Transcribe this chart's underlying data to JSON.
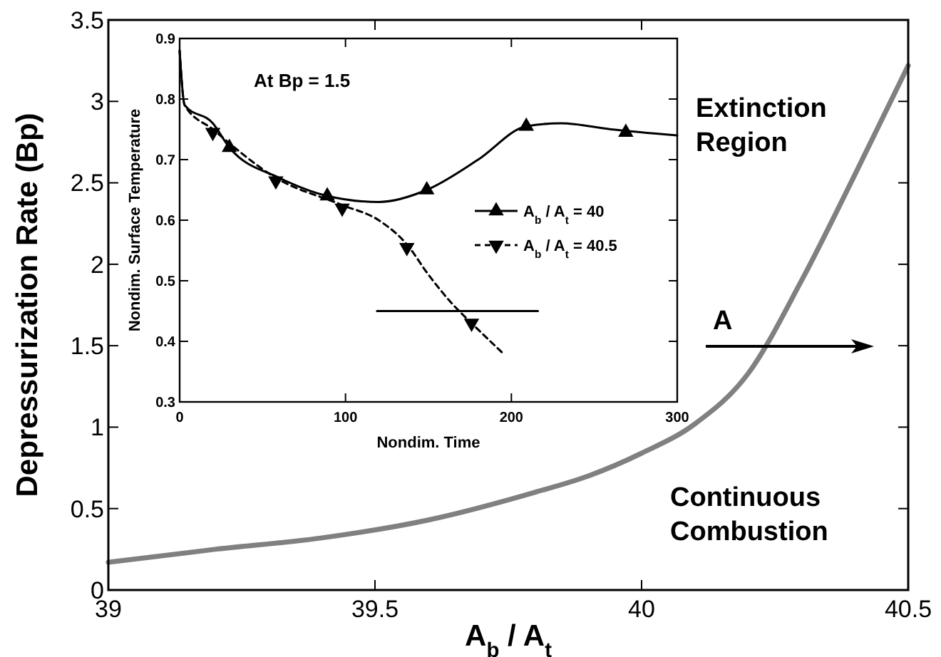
{
  "chart_data": [
    {
      "type": "line",
      "xlabel": "A$_{b}$ / A$_{t}$",
      "ylabel": "Depressurization Rate  (Bp)",
      "xlim": [
        39,
        40.5
      ],
      "ylim": [
        0,
        3.5
      ],
      "xticks": [
        39,
        39.5,
        40,
        40.5
      ],
      "yticks": [
        0,
        0.5,
        1,
        1.5,
        2,
        2.5,
        3,
        3.5
      ],
      "grid": false,
      "legend": false,
      "x": [
        39,
        39.2,
        39.4,
        39.6,
        39.8,
        39.9,
        40,
        40.1,
        40.2,
        40.3,
        40.4,
        40.5
      ],
      "series": [
        {
          "color": "#808080",
          "values": [
            0.17,
            0.25,
            0.32,
            0.43,
            0.6,
            0.7,
            0.84,
            1.02,
            1.33,
            1.9,
            2.55,
            3.22
          ]
        }
      ],
      "annotations": [
        "Extinction Region",
        "Continuous Combustion",
        "A"
      ]
    },
    {
      "type": "line",
      "xlabel": "Nondim. Time",
      "ylabel": "Nondim. Surface Temperature",
      "xlim": [
        0,
        300
      ],
      "ylim": [
        0.3,
        0.9
      ],
      "xticks": [
        0,
        100,
        200,
        300
      ],
      "yticks": [
        0.3,
        0.4,
        0.5,
        0.6,
        0.7,
        0.8,
        0.9
      ],
      "grid": false,
      "legend": "right",
      "series": [
        {
          "name": "A$_{b}$ / A$_{t}$ = 40",
          "color": "#000000",
          "line_style": "solid",
          "x": [
            0,
            3,
            20,
            30,
            60,
            89,
            120,
            149,
            180,
            209,
            230,
            260,
            300
          ],
          "values": [
            0.88,
            0.79,
            0.76,
            0.72,
            0.67,
            0.64,
            0.63,
            0.65,
            0.7,
            0.755,
            0.76,
            0.75,
            0.74
          ]
        },
        {
          "type": "scatter",
          "color": "#000000",
          "marker": "triangle",
          "x": [
            30,
            89,
            149,
            209,
            269
          ],
          "values": [
            0.72,
            0.64,
            0.65,
            0.755,
            0.745
          ]
        },
        {
          "name": "A$_{b}$ / A$_{t}$ = 40.5",
          "color": "#000000",
          "line_style": "dashed",
          "x": [
            0,
            3,
            20,
            58,
            98,
            120,
            137,
            150,
            165,
            176,
            195
          ],
          "values": [
            0.88,
            0.79,
            0.75,
            0.67,
            0.625,
            0.6,
            0.56,
            0.51,
            0.46,
            0.43,
            0.38
          ]
        },
        {
          "type": "scatter",
          "color": "#000000",
          "marker": "triangle-down",
          "x": [
            20,
            58,
            98,
            137,
            176
          ],
          "values": [
            0.745,
            0.665,
            0.62,
            0.555,
            0.43
          ]
        },
        {
          "color": "#000000",
          "line_style": "solid",
          "x": [
            119,
            216
          ],
          "values": [
            0.45,
            0.45
          ]
        }
      ],
      "annotations": [
        "At Bp = 1.5"
      ]
    }
  ]
}
